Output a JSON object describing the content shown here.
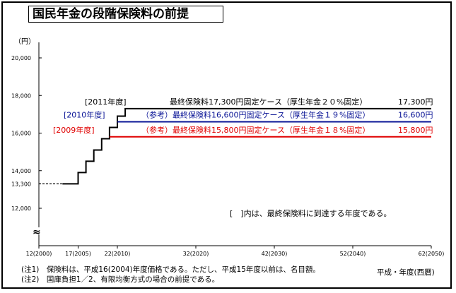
{
  "title": "国民年金の段階保険料の前提",
  "chart_data": {
    "type": "line",
    "yunit": "（円）",
    "y_ticks": [
      12000,
      14000,
      16000,
      18000,
      20000
    ],
    "y_tick_labels": [
      "12,000",
      "14,000",
      "16,000",
      "18,000",
      "20,000"
    ],
    "y_break_symbol": "≈",
    "ylim": [
      11000,
      21000
    ],
    "x_ticks": [
      2000,
      2005,
      2010,
      2020,
      2030,
      2040,
      2050
    ],
    "x_tick_labels": [
      "12(2000)",
      "17(2005)",
      "22(2010)",
      "32(2020)",
      "42(2030)",
      "52(2040)",
      "62(2050)"
    ],
    "xlim": [
      2000,
      2050
    ],
    "xlabel": "平成・年度(西暦)",
    "start_level_label": "13,300",
    "series": [
      {
        "name": "最終保険料17,300円固定ケース（厚生年金２０%固定）",
        "color": "#000000",
        "end_label": "17,300円",
        "reach_label": "[2011年度]",
        "x": [
          2003,
          2005,
          2005,
          2006,
          2006,
          2007,
          2007,
          2008,
          2008,
          2009,
          2009,
          2010,
          2010,
          2011,
          2011,
          2050
        ],
        "y": [
          13300,
          13300,
          13900,
          13900,
          14500,
          14500,
          15100,
          15100,
          15700,
          15700,
          16300,
          16300,
          16900,
          16900,
          17300,
          17300
        ]
      },
      {
        "name": "（参考）最終保険料16,600円固定ケース（厚生年金１９%固定）",
        "color": "#0a1496",
        "end_label": "16,600円",
        "reach_label": "[2010年度]",
        "x": [
          2010,
          2050
        ],
        "y": [
          16600,
          16600
        ]
      },
      {
        "name": "（参考）最終保険料15,800円固定ケース（厚生年金１８%固定）",
        "color": "#e00000",
        "end_label": "15,800円",
        "reach_label": "[2009年度]",
        "x": [
          2009,
          2050
        ],
        "y": [
          15800,
          15800
        ]
      }
    ],
    "annotation": "[　]内は、最終保険料に到達する年度である。",
    "grid": false,
    "legend": "inline"
  },
  "notes": [
    "(注1)　保険料は、平成16(2004)年度価格である。ただし、平成15年度以前は、名目額。",
    "(注2)　国庫負担1／2、有限均衡方式の場合の前提である。"
  ]
}
